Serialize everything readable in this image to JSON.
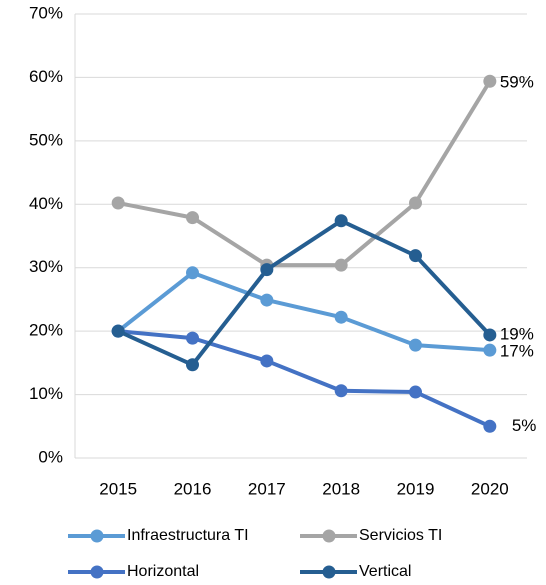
{
  "chart_data": {
    "type": "line",
    "categories": [
      "2015",
      "2016",
      "2017",
      "2018",
      "2019",
      "2020"
    ],
    "series": [
      {
        "name": "Infraestructura TI",
        "color": "#5b9bd5",
        "values": [
          20,
          29.2,
          24.9,
          22.2,
          17.8,
          17
        ],
        "value_labels": [
          null,
          null,
          null,
          null,
          null,
          "17%"
        ]
      },
      {
        "name": "Servicios TI",
        "color": "#a5a5a5",
        "values": [
          40.2,
          37.9,
          30.4,
          30.4,
          40.2,
          59.4
        ],
        "value_labels": [
          null,
          null,
          null,
          null,
          null,
          "59%"
        ]
      },
      {
        "name": "Horizontal",
        "color": "#4472c4",
        "values": [
          20,
          18.9,
          15.3,
          10.6,
          10.4,
          5
        ],
        "value_labels": [
          null,
          null,
          null,
          null,
          null,
          "5%"
        ]
      },
      {
        "name": "Vertical",
        "color": "#255e91",
        "values": [
          20,
          14.7,
          29.7,
          37.4,
          31.9,
          19.4
        ],
        "value_labels": [
          null,
          null,
          null,
          null,
          null,
          "19%"
        ]
      }
    ],
    "ylim": [
      0,
      70
    ],
    "yticks": [
      {
        "value": 0,
        "label": "0%"
      },
      {
        "value": 10,
        "label": "10%"
      },
      {
        "value": 20,
        "label": "20%"
      },
      {
        "value": 30,
        "label": "30%"
      },
      {
        "value": 40,
        "label": "40%"
      },
      {
        "value": 50,
        "label": "50%"
      },
      {
        "value": 60,
        "label": "60%"
      },
      {
        "value": 70,
        "label": "70%"
      }
    ],
    "grid": true
  }
}
